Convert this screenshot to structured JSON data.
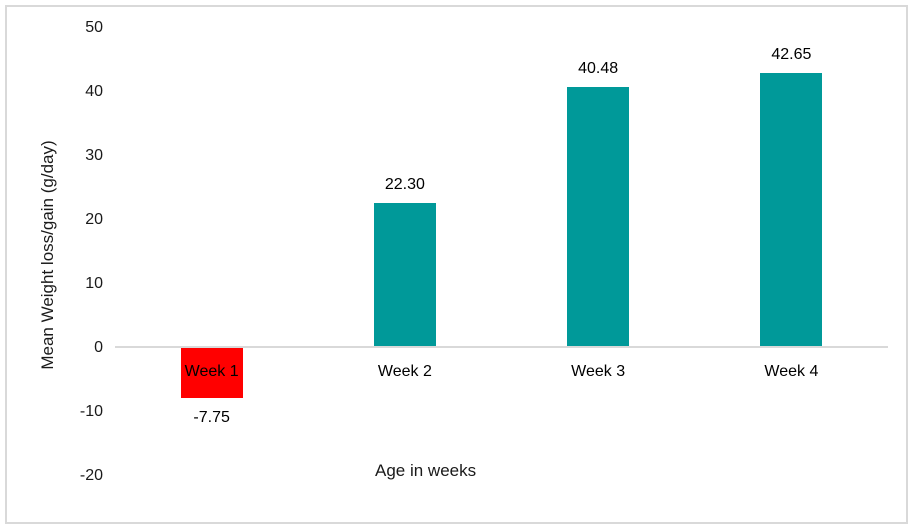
{
  "chart_data": {
    "type": "bar",
    "categories": [
      "Week 1",
      "Week 2",
      "Week 3",
      "Week 4"
    ],
    "values": [
      -7.75,
      22.3,
      40.48,
      42.65
    ],
    "value_labels": [
      "-7.75",
      "22.30",
      "40.48",
      "42.65"
    ],
    "bar_colors": [
      "#ff0000",
      "#009999",
      "#009999",
      "#009999"
    ],
    "title": "",
    "xlabel": "Age in weeks",
    "ylabel": "Mean Weight loss/gain  (g/day)",
    "ylim": [
      -20,
      50
    ],
    "yticks": [
      50,
      40,
      30,
      20,
      10,
      0,
      -10,
      -20
    ],
    "legend_position": "none",
    "grid": false,
    "colors": {
      "positive_bar": "#009999",
      "negative_bar": "#ff0000",
      "axis_line": "#d9d9d9",
      "frame_border": "#d9d9d9",
      "text": "#1a1a1a"
    }
  }
}
